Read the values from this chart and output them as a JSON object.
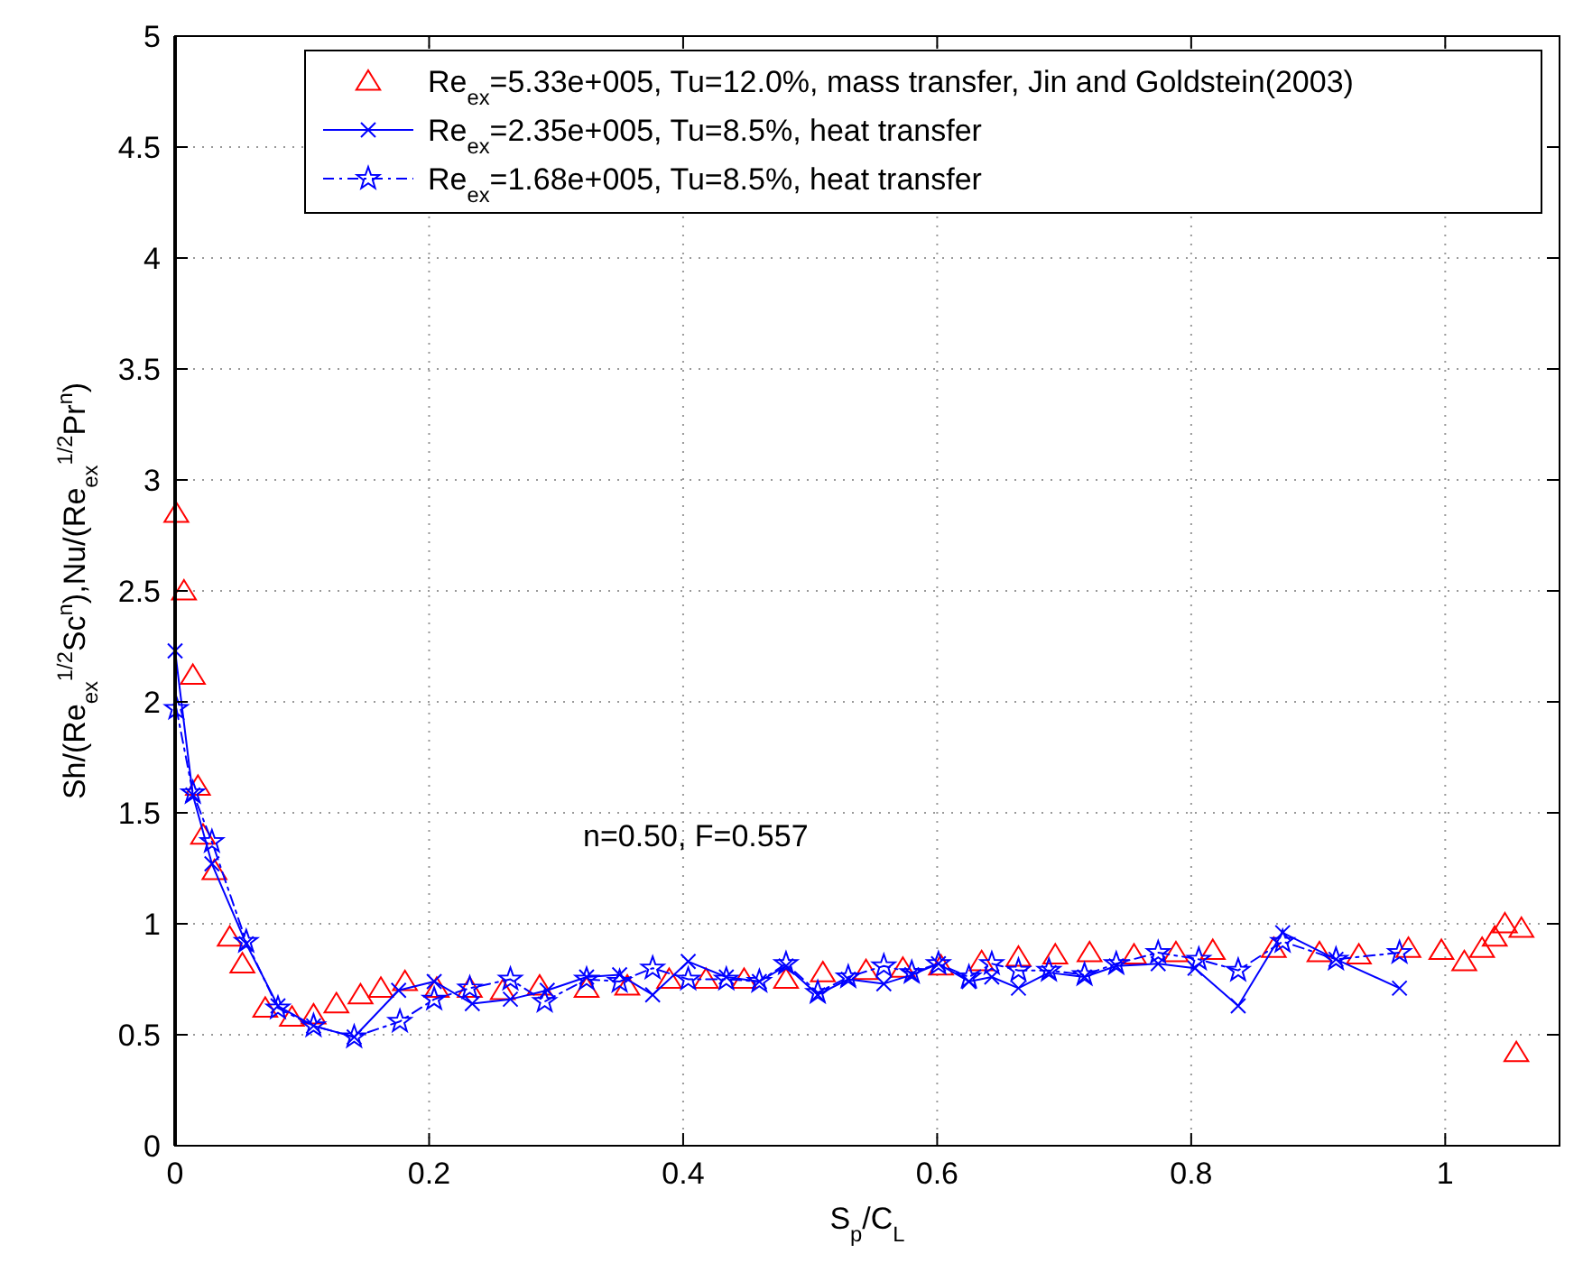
{
  "chart_data": {
    "type": "line",
    "xlabel": "S$_{p}$/C$_{L}$",
    "ylabel": "Sh/(Re$_{ex}$$^{1/2}$Sc$^{n}$),Nu/(Re$_{ex}$$^{1/2}$Pr$^{n}$)",
    "xlim": [
      0,
      1.09
    ],
    "xticks": [
      0,
      0.2,
      0.4,
      0.6,
      0.8,
      1
    ],
    "ylim": [
      0,
      5
    ],
    "yticks": [
      0,
      0.5,
      1,
      1.5,
      2,
      2.5,
      3,
      3.5,
      4,
      4.5,
      5
    ],
    "grid": true,
    "legend": "top right",
    "annotations": [
      "n=0.50, F=0.557"
    ],
    "series": [
      {
        "name": "Re$_{ex}$=5.33e+005, Tu=12.0%, mass transfer, Jin and Goldstein(2003)",
        "type": "scatter",
        "marker": "triangle",
        "color": "#ff0000",
        "x": [
          0.001,
          0.007,
          0.014,
          0.018,
          0.022,
          0.031,
          0.043,
          0.053,
          0.071,
          0.092,
          0.109,
          0.127,
          0.146,
          0.162,
          0.181,
          0.206,
          0.232,
          0.258,
          0.287,
          0.324,
          0.356,
          0.389,
          0.418,
          0.448,
          0.481,
          0.51,
          0.544,
          0.573,
          0.603,
          0.635,
          0.664,
          0.693,
          0.72,
          0.755,
          0.788,
          0.817,
          0.865,
          0.901,
          0.932,
          0.971,
          0.997,
          1.015,
          1.029,
          1.039,
          1.047,
          1.06,
          1.056
        ],
        "values": [
          2.85,
          2.5,
          2.12,
          1.62,
          1.4,
          1.24,
          0.94,
          0.82,
          0.62,
          0.58,
          0.59,
          0.64,
          0.68,
          0.71,
          0.74,
          0.71,
          0.71,
          0.7,
          0.72,
          0.71,
          0.72,
          0.75,
          0.75,
          0.75,
          0.75,
          0.78,
          0.79,
          0.8,
          0.81,
          0.83,
          0.85,
          0.86,
          0.87,
          0.86,
          0.87,
          0.88,
          0.89,
          0.87,
          0.86,
          0.89,
          0.88,
          0.83,
          0.89,
          0.94,
          1.0,
          0.98,
          0.42
        ]
      },
      {
        "name": "Re$_{ex}$=2.35e+005, Tu=8.5%, heat transfer",
        "marker": "cross",
        "line_style": "solid",
        "color": "#0000ff",
        "x": [
          0,
          0.014,
          0.029,
          0.056,
          0.081,
          0.109,
          0.141,
          0.176,
          0.204,
          0.234,
          0.264,
          0.293,
          0.324,
          0.35,
          0.376,
          0.404,
          0.434,
          0.46,
          0.481,
          0.506,
          0.53,
          0.558,
          0.58,
          0.601,
          0.625,
          0.643,
          0.664,
          0.688,
          0.716,
          0.741,
          0.774,
          0.803,
          0.837,
          0.872,
          0.914,
          0.964
        ],
        "values": [
          2.23,
          1.58,
          1.27,
          0.91,
          0.63,
          0.54,
          0.49,
          0.7,
          0.74,
          0.64,
          0.66,
          0.7,
          0.76,
          0.77,
          0.68,
          0.83,
          0.76,
          0.74,
          0.81,
          0.68,
          0.75,
          0.73,
          0.77,
          0.82,
          0.74,
          0.76,
          0.71,
          0.78,
          0.76,
          0.81,
          0.82,
          0.8,
          0.63,
          0.96,
          0.84,
          0.71
        ]
      },
      {
        "name": "Re$_{ex}$=1.68e+005, Tu=8.5%, heat transfer",
        "marker": "star",
        "line_style": "dashed",
        "color": "#0000ff",
        "x": [
          0.001,
          0.014,
          0.029,
          0.056,
          0.081,
          0.109,
          0.141,
          0.177,
          0.204,
          0.232,
          0.264,
          0.291,
          0.324,
          0.35,
          0.376,
          0.404,
          0.434,
          0.46,
          0.481,
          0.506,
          0.53,
          0.558,
          0.58,
          0.601,
          0.625,
          0.643,
          0.664,
          0.688,
          0.716,
          0.741,
          0.774,
          0.806,
          0.837,
          0.872,
          0.914,
          0.964
        ],
        "values": [
          1.97,
          1.59,
          1.37,
          0.92,
          0.62,
          0.54,
          0.49,
          0.56,
          0.66,
          0.71,
          0.75,
          0.65,
          0.75,
          0.74,
          0.8,
          0.75,
          0.75,
          0.74,
          0.82,
          0.69,
          0.76,
          0.81,
          0.78,
          0.82,
          0.76,
          0.82,
          0.79,
          0.79,
          0.77,
          0.82,
          0.87,
          0.84,
          0.79,
          0.92,
          0.84,
          0.87
        ]
      }
    ]
  }
}
